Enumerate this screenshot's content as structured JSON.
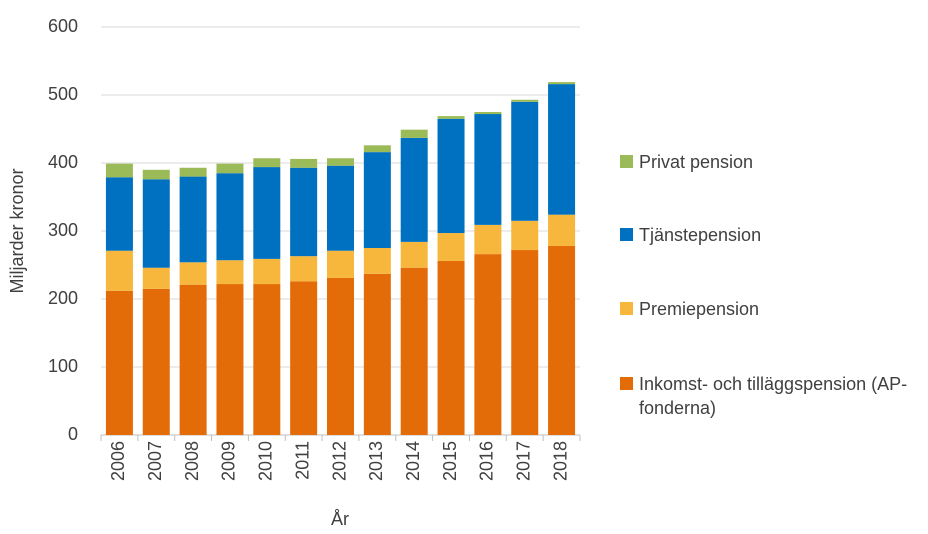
{
  "chart_data": {
    "type": "stacked_bar",
    "x_label": "År",
    "y_label": "Miljarder kronor",
    "categories": [
      "2006",
      "2007",
      "2008",
      "2009",
      "2010",
      "2011",
      "2012",
      "2013",
      "2014",
      "2015",
      "2016",
      "2017",
      "2018"
    ],
    "series": [
      {
        "name": "Inkomst- och tilläggspension (AP-fonderna)",
        "color": "#e36c09",
        "values": [
          212,
          215,
          221,
          222,
          222,
          226,
          231,
          237,
          246,
          256,
          266,
          272,
          278
        ]
      },
      {
        "name": "Premiepension",
        "color": "#f6b73c",
        "values": [
          59,
          31,
          33,
          35,
          37,
          37,
          40,
          38,
          38,
          41,
          43,
          43,
          46
        ]
      },
      {
        "name": "Tjänstepension",
        "color": "#0070c0",
        "values": [
          108,
          130,
          126,
          128,
          135,
          130,
          125,
          141,
          153,
          168,
          163,
          175,
          192
        ]
      },
      {
        "name": "Privat pension",
        "color": "#9bbb59",
        "values": [
          20,
          14,
          13,
          14,
          13,
          13,
          11,
          10,
          12,
          4,
          3,
          3,
          3
        ]
      }
    ],
    "ylim": [
      0,
      600
    ],
    "yticks": [
      0,
      100,
      200,
      300,
      400,
      500,
      600
    ],
    "grid": true,
    "legend": "right"
  }
}
